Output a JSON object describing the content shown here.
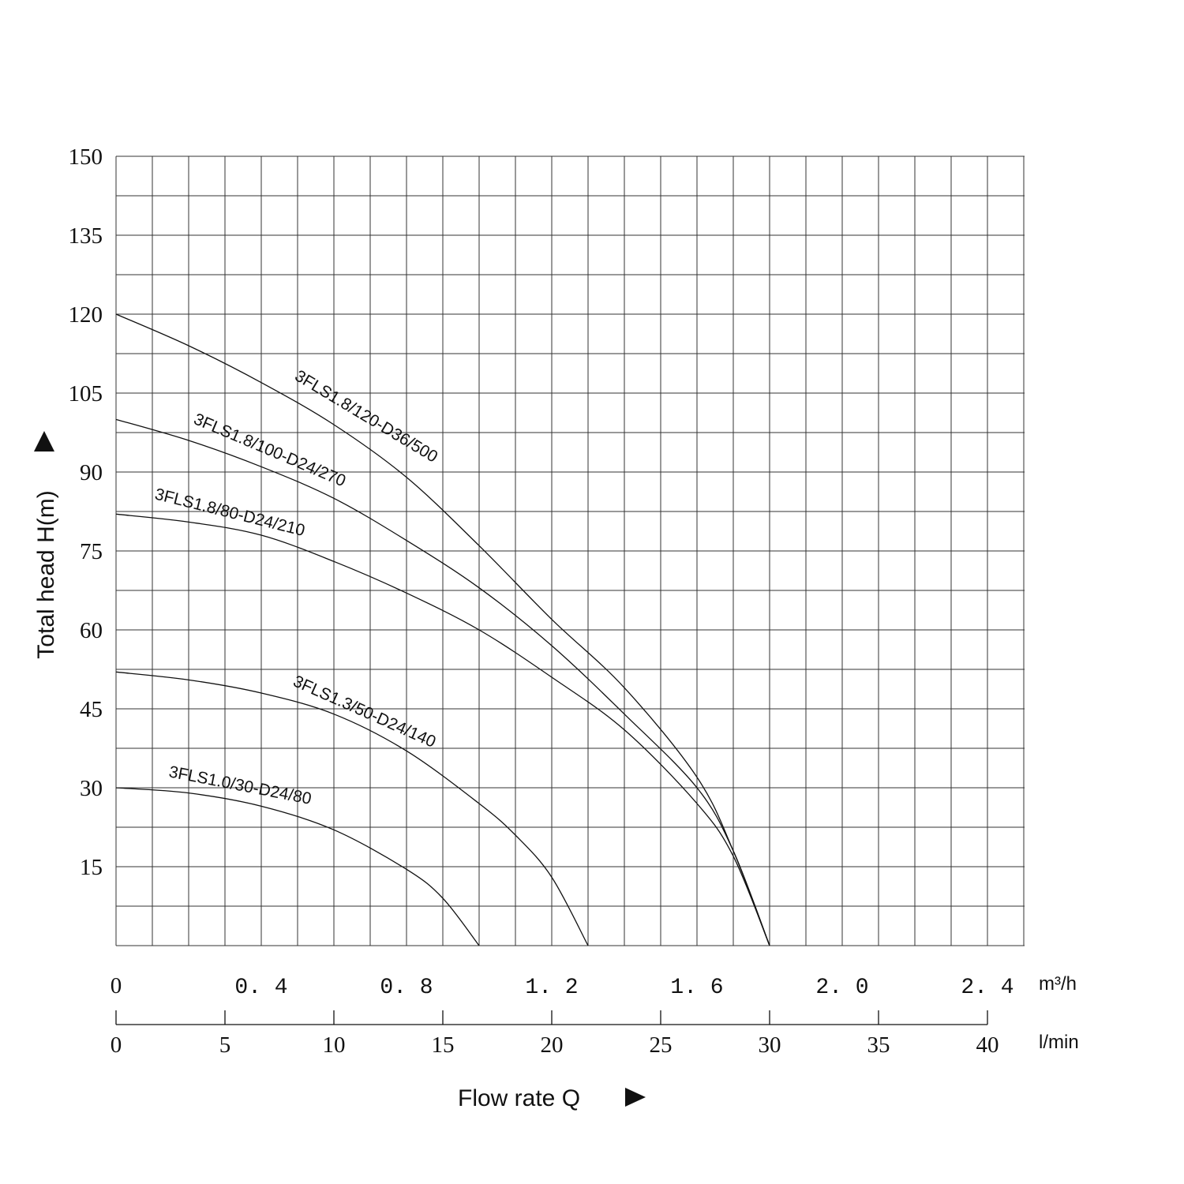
{
  "chart_data": {
    "type": "line",
    "title": "",
    "ylabel": "Total head H(m)",
    "xlabel": "Flow rate Q",
    "ylim": [
      0,
      150
    ],
    "y_ticks": [
      "150",
      "135",
      "120",
      "105",
      "90",
      "75",
      "60",
      "45",
      "30",
      "15"
    ],
    "xlim_m3h": [
      0,
      2.5
    ],
    "x_ticks_m3h": [
      "0",
      "0. 4",
      "0. 8",
      "1. 2",
      "1. 6",
      "2. 0",
      "2. 4"
    ],
    "x_unit_m3h": "m³/h",
    "x_ticks_lmin": [
      "0",
      "5",
      "10",
      "15",
      "20",
      "25",
      "30",
      "35",
      "40"
    ],
    "x_unit_lmin": "l/min",
    "grid": true,
    "series": [
      {
        "name": "3FLS1.8/120-D36/500",
        "x": [
          0,
          0.2,
          0.4,
          0.6,
          0.8,
          1.0,
          1.2,
          1.4,
          1.6,
          1.7,
          1.8
        ],
        "y": [
          120,
          114,
          107,
          99,
          89,
          76,
          62,
          49,
          32,
          18,
          0
        ]
      },
      {
        "name": "3FLS1.8/100-D24/270",
        "x": [
          0,
          0.2,
          0.4,
          0.6,
          0.8,
          1.0,
          1.2,
          1.4,
          1.6,
          1.7,
          1.8
        ],
        "y": [
          100,
          96,
          91,
          85,
          77,
          68,
          57,
          44,
          30,
          18,
          0
        ]
      },
      {
        "name": "3FLS1.8/80-D24/210",
        "x": [
          0,
          0.2,
          0.4,
          0.6,
          0.8,
          1.0,
          1.2,
          1.4,
          1.6,
          1.7,
          1.8
        ],
        "y": [
          82,
          80.5,
          78,
          73,
          67,
          60,
          51,
          41,
          27,
          17,
          0
        ]
      },
      {
        "name": "3FLS1.3/50-D24/140",
        "x": [
          0,
          0.2,
          0.4,
          0.6,
          0.8,
          1.0,
          1.1,
          1.2,
          1.3
        ],
        "y": [
          52,
          50.5,
          48,
          44,
          37,
          27,
          21,
          13,
          0
        ]
      },
      {
        "name": "3FLS1.0/30-D24/80",
        "x": [
          0,
          0.2,
          0.4,
          0.6,
          0.8,
          0.9,
          1.0
        ],
        "y": [
          30,
          29,
          26.5,
          22,
          14.5,
          9,
          0
        ]
      }
    ]
  }
}
